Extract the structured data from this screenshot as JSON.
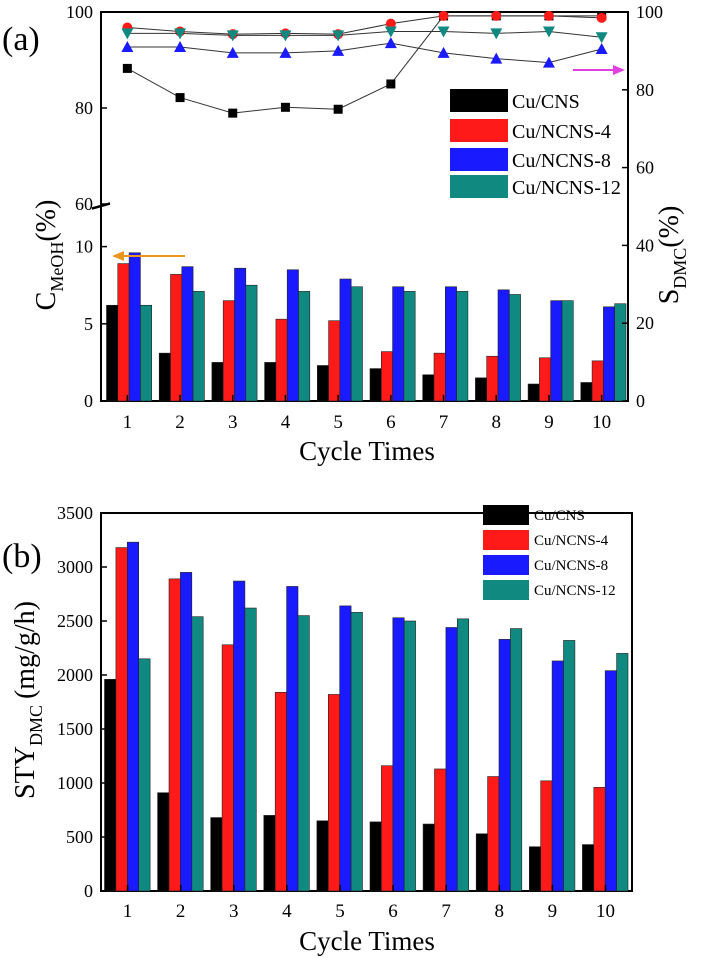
{
  "colors": {
    "cu_cns": "#000000",
    "ncns4": "#ff1a1a",
    "ncns8": "#1a1aff",
    "ncns12": "#108a80",
    "axis": "#000000",
    "left_arrow": "#e8961e",
    "right_arrow": "#e040e0"
  },
  "chart_data": [
    {
      "id": "a",
      "panel_label": "(a)",
      "type": "bar",
      "combo": "bar+line (dual y-axis, broken left axis)",
      "categories": [
        "1",
        "2",
        "3",
        "4",
        "5",
        "6",
        "7",
        "8",
        "9",
        "10"
      ],
      "xlabel": "Cycle Times",
      "ylabel_left": {
        "main": "C",
        "sub": "MeOH",
        "unit": "(%)"
      },
      "ylabel_right": {
        "main": "S",
        "sub": "DMC",
        "unit": "(%)"
      },
      "ylim_left_lower": [
        0,
        12.5
      ],
      "ylim_left_upper": [
        60,
        100
      ],
      "ylim_right": [
        0,
        100
      ],
      "left_ticks_lower": [
        "0",
        "5",
        "10"
      ],
      "left_ticks_upper": [
        "60",
        "80",
        "100"
      ],
      "right_ticks": [
        "0",
        "20",
        "40",
        "60",
        "80",
        "100"
      ],
      "legend": [
        "Cu/CNS",
        "Cu/NCNS-4",
        "Cu/NCNS-8",
        "Cu/NCNS-12"
      ],
      "legend_position": "upper-right",
      "bar_series": [
        {
          "name": "Cu/CNS",
          "axis": "left",
          "values": [
            6.2,
            3.1,
            2.5,
            2.5,
            2.3,
            2.1,
            1.7,
            1.5,
            1.1,
            1.2
          ]
        },
        {
          "name": "Cu/NCNS-4",
          "axis": "left",
          "values": [
            8.9,
            8.2,
            6.5,
            5.3,
            5.2,
            3.2,
            3.1,
            2.9,
            2.8,
            2.6
          ]
        },
        {
          "name": "Cu/NCNS-8",
          "axis": "left",
          "values": [
            9.6,
            8.7,
            8.6,
            8.5,
            7.9,
            7.4,
            7.4,
            7.2,
            6.5,
            6.1
          ]
        },
        {
          "name": "Cu/NCNS-12",
          "axis": "left",
          "values": [
            6.2,
            7.1,
            7.5,
            7.1,
            7.4,
            7.1,
            7.1,
            6.9,
            6.5,
            6.3
          ]
        }
      ],
      "line_series": [
        {
          "name": "Cu/CNS",
          "axis": "right",
          "marker": "square",
          "values": [
            85.5,
            78,
            74,
            75.5,
            75,
            81.5,
            99,
            99,
            99,
            99
          ]
        },
        {
          "name": "Cu/NCNS-4",
          "axis": "right",
          "marker": "circle",
          "values": [
            96,
            95,
            94.3,
            94.5,
            94.3,
            97,
            99,
            99,
            99,
            98.5
          ]
        },
        {
          "name": "Cu/NCNS-8",
          "axis": "right",
          "marker": "triangle-up",
          "values": [
            91,
            91,
            89.5,
            89.5,
            90,
            92,
            89.5,
            88,
            87,
            90.5
          ]
        },
        {
          "name": "Cu/NCNS-12",
          "axis": "right",
          "marker": "triangle-down",
          "values": [
            94.5,
            94.5,
            94,
            94,
            94,
            95,
            95,
            94.5,
            95,
            93.5
          ]
        }
      ],
      "annotations": [
        "left arrow pointing to left axis near C=10",
        "right arrow pointing to right axis near S=88"
      ]
    },
    {
      "id": "b",
      "panel_label": "(b)",
      "type": "bar",
      "categories": [
        "1",
        "2",
        "3",
        "4",
        "5",
        "6",
        "7",
        "8",
        "9",
        "10"
      ],
      "xlabel": "Cycle Times",
      "ylabel": {
        "main": "STY",
        "sub": "DMC",
        "unit": "(mg/g/h)"
      },
      "ylim": [
        0,
        3500
      ],
      "yticks": [
        "0",
        "500",
        "1000",
        "1500",
        "2000",
        "2500",
        "3000",
        "3500"
      ],
      "legend": [
        "Cu/CNS",
        "Cu/NCNS-4",
        "Cu/NCNS-8",
        "Cu/NCNS-12"
      ],
      "legend_position": "upper-right",
      "series": [
        {
          "name": "Cu/CNS",
          "values": [
            1960,
            910,
            680,
            700,
            650,
            640,
            620,
            530,
            410,
            430
          ]
        },
        {
          "name": "Cu/NCNS-4",
          "values": [
            3180,
            2890,
            2280,
            1840,
            1820,
            1160,
            1130,
            1060,
            1020,
            960
          ]
        },
        {
          "name": "Cu/NCNS-8",
          "values": [
            3230,
            2950,
            2870,
            2820,
            2640,
            2530,
            2440,
            2330,
            2130,
            2040
          ]
        },
        {
          "name": "Cu/NCNS-12",
          "values": [
            2150,
            2540,
            2620,
            2550,
            2580,
            2500,
            2520,
            2430,
            2320,
            2200
          ]
        }
      ]
    }
  ]
}
